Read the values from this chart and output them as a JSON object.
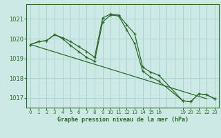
{
  "title": "Graphe pression niveau de la mer (hPa)",
  "background_color": "#cce9e5",
  "grid_color": "#aad4cf",
  "line_color": "#2d6a2d",
  "xlim": [
    -0.5,
    23.5
  ],
  "ylim": [
    1016.5,
    1021.75
  ],
  "yticks": [
    1017,
    1018,
    1019,
    1020,
    1021
  ],
  "xticks": [
    0,
    1,
    2,
    3,
    4,
    5,
    6,
    7,
    8,
    9,
    10,
    11,
    12,
    13,
    14,
    15,
    16,
    19,
    20,
    21,
    22,
    23
  ],
  "xgrid": [
    0,
    1,
    2,
    3,
    4,
    5,
    6,
    7,
    8,
    9,
    10,
    11,
    12,
    13,
    14,
    15,
    16,
    17,
    18,
    19,
    20,
    21,
    22,
    23
  ],
  "series1_x": [
    0,
    1,
    2,
    3,
    4,
    5,
    6,
    7,
    8,
    9,
    10,
    11,
    12,
    13,
    14,
    15,
    16,
    19,
    20,
    21,
    22,
    23
  ],
  "series1_y": [
    1019.7,
    1019.85,
    1019.9,
    1020.2,
    1020.05,
    1019.85,
    1019.6,
    1019.35,
    1019.05,
    1021.05,
    1021.25,
    1021.2,
    1020.7,
    1020.25,
    1018.55,
    1018.3,
    1018.15,
    1016.85,
    1016.8,
    1017.2,
    1017.15,
    1016.95
  ],
  "series2_x": [
    0,
    1,
    2,
    3,
    4,
    5,
    6,
    7,
    8,
    9,
    10,
    11,
    12,
    13,
    14,
    15,
    16,
    19,
    20,
    21,
    22,
    23
  ],
  "series2_y": [
    1019.7,
    1019.85,
    1019.9,
    1020.2,
    1020.0,
    1019.65,
    1019.35,
    1019.05,
    1018.85,
    1020.85,
    1021.2,
    1021.15,
    1020.45,
    1019.75,
    1018.35,
    1018.05,
    1017.85,
    1016.85,
    1016.8,
    1017.2,
    1017.15,
    1016.95
  ],
  "series3_x": [
    0,
    22
  ],
  "series3_y": [
    1019.7,
    1016.95
  ]
}
